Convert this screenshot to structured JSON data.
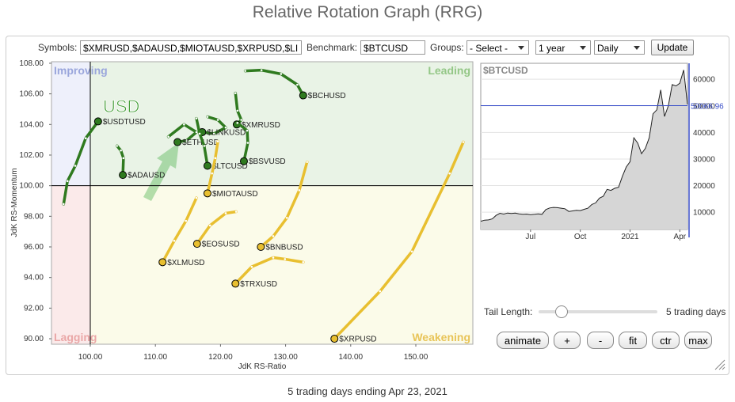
{
  "header": {
    "title": "Relative Rotation Graph (RRG)"
  },
  "controls": {
    "symbols_label": "Symbols:",
    "symbols_value": "$XMRUSD,$ADAUSD,$MIOTAUSD,$XRPUSD,$LI",
    "benchmark_label": "Benchmark:",
    "benchmark_value": "$BTCUSD",
    "groups_label": "Groups:",
    "groups_value": "- Select -",
    "period": "1 year",
    "frequency": "Daily",
    "update": "Update",
    "tail_label": "Tail Length:",
    "tail_value": "5 trading days",
    "buttons": [
      "animate",
      "+",
      "-",
      "fit",
      "ctr",
      "max"
    ]
  },
  "chart_data": [
    {
      "type": "scatter",
      "x_label": "JdK RS-Ratio",
      "y_label": "JdK RS-Momentum",
      "annotation": "USD",
      "quadrant_labels": {
        "improving": "Improving",
        "leading": "Leading",
        "lagging": "Lagging",
        "weakening": "Weakening"
      },
      "crosshair": {
        "x": 100,
        "y": 100
      },
      "xlim": [
        94.04,
        158.76
      ],
      "xticks": [
        {
          "value": 100,
          "label": "100.00"
        },
        {
          "value": 110,
          "label": "110.00"
        },
        {
          "value": 120,
          "label": "120.00"
        },
        {
          "value": 130,
          "label": "130.00"
        },
        {
          "value": 140,
          "label": "140.00"
        },
        {
          "value": 150,
          "label": "150.00"
        }
      ],
      "ylim": [
        89.64,
        108.1
      ],
      "yticks": [
        {
          "value": 90,
          "label": "90.00"
        },
        {
          "value": 92,
          "label": "92.00"
        },
        {
          "value": 94,
          "label": "94.00"
        },
        {
          "value": 96,
          "label": "96.00"
        },
        {
          "value": 98,
          "label": "98.00"
        },
        {
          "value": 100,
          "label": "100.00"
        },
        {
          "value": 102,
          "label": "102.00"
        },
        {
          "value": 104,
          "label": "104.00"
        },
        {
          "value": 106,
          "label": "106.00"
        },
        {
          "value": 108,
          "label": "108.00"
        }
      ],
      "series": [
        {
          "name": "$BCHUSD",
          "color": "#2f7a1f",
          "x": [
            123.8,
            126.3,
            129.3,
            131.8,
            132.7
          ],
          "y": [
            107.5,
            107.55,
            107.3,
            106.6,
            105.9
          ]
        },
        {
          "name": "$USDTUSD",
          "color": "#2f7a1f",
          "x": [
            95.9,
            96.5,
            97.7,
            99.3,
            101.2
          ],
          "y": [
            98.8,
            100.3,
            101.3,
            103.1,
            104.2
          ]
        },
        {
          "name": "$ADAUSD",
          "color": "#2f7a1f",
          "x": [
            104.1,
            104.7,
            105.1,
            105.0
          ],
          "y": [
            102.6,
            102.3,
            101.8,
            100.7
          ]
        },
        {
          "name": "$ETHUSD",
          "color": "#2f7a1f",
          "x": [
            112.0,
            114.4,
            116.3,
            114.8,
            113.4
          ],
          "y": [
            103.2,
            104.0,
            103.5,
            102.95,
            102.85
          ]
        },
        {
          "name": "$LINKUSD",
          "color": "#2f7a1f",
          "x": [
            118.0,
            119.6,
            120.8,
            119.0,
            117.2
          ],
          "y": [
            104.5,
            104.3,
            103.8,
            103.4,
            103.5
          ]
        },
        {
          "name": "$LTCUSD",
          "color": "#2f7a1f",
          "x": [
            116.3,
            116.8,
            117.5,
            118.0
          ],
          "y": [
            104.4,
            103.4,
            102.6,
            101.3
          ]
        },
        {
          "name": "$XMRUSD",
          "color": "#2f7a1f",
          "x": [
            122.3,
            122.6,
            123.2,
            122.5
          ],
          "y": [
            106.05,
            104.9,
            104.3,
            104.0
          ]
        },
        {
          "name": "$BSVUSD",
          "color": "#2f7a1f",
          "x": [
            122.6,
            124.1,
            124.2,
            123.6
          ],
          "y": [
            104.1,
            103.6,
            102.8,
            101.6
          ]
        },
        {
          "name": "$MIOTAUSD",
          "color": "#e8bf30",
          "x": [
            119.6,
            119.2,
            118.7,
            118.0
          ],
          "y": [
            102.9,
            101.8,
            100.8,
            99.5
          ]
        },
        {
          "name": "$EOSUSD",
          "color": "#e8bf30",
          "x": [
            122.4,
            120.8,
            118.4,
            116.4
          ],
          "y": [
            98.3,
            98.2,
            97.4,
            96.2
          ]
        },
        {
          "name": "$XLMUSD",
          "color": "#e8bf30",
          "x": [
            116.3,
            114.7,
            112.9,
            111.1
          ],
          "y": [
            99.2,
            97.7,
            96.4,
            95.0
          ]
        },
        {
          "name": "$BNBUSD",
          "color": "#e8bf30",
          "x": [
            133.3,
            132.1,
            130.2,
            128.1,
            126.2
          ],
          "y": [
            101.55,
            99.7,
            97.9,
            96.7,
            96.0
          ]
        },
        {
          "name": "$TRXUSD",
          "color": "#e8bf30",
          "x": [
            132.7,
            129.9,
            128.1,
            124.8,
            122.3
          ],
          "y": [
            95.0,
            95.2,
            95.3,
            94.7,
            93.6
          ]
        },
        {
          "name": "$XRPUSD",
          "color": "#e8bf30",
          "x": [
            157.3,
            155.2,
            149.4,
            144.5,
            137.5
          ],
          "y": [
            102.85,
            100.8,
            95.7,
            93.1,
            90.0
          ]
        }
      ]
    },
    {
      "type": "area",
      "title": "$BTCUSD",
      "color": "#222222",
      "categories": [
        null,
        null,
        null,
        null,
        null,
        null,
        null,
        null,
        null,
        null,
        null,
        null,
        null,
        "Jul",
        null,
        null,
        null,
        null,
        null,
        null,
        null,
        null,
        null,
        null,
        null,
        null,
        "Oct",
        null,
        null,
        null,
        null,
        null,
        null,
        null,
        null,
        null,
        null,
        null,
        null,
        "2021",
        null,
        null,
        null,
        null,
        null,
        null,
        null,
        null,
        null,
        null,
        null,
        null,
        "Apr",
        null,
        null
      ],
      "values": [
        6600,
        7000,
        7100,
        7500,
        8800,
        9600,
        9300,
        9700,
        9500,
        9700,
        9400,
        9200,
        9300,
        9100,
        9200,
        9400,
        9200,
        11000,
        11600,
        11800,
        11700,
        11500,
        11300,
        10300,
        10500,
        10700,
        10600,
        11100,
        11500,
        12900,
        13500,
        15300,
        16000,
        18600,
        18200,
        19000,
        19400,
        23500,
        27000,
        29000,
        38000,
        36000,
        32000,
        34000,
        38000,
        47000,
        48500,
        56000,
        46000,
        50000,
        58000,
        57500,
        58500,
        63500,
        50500
      ],
      "ylim": [
        3500,
        66000
      ],
      "yticks": [
        10000,
        20000,
        30000,
        40000,
        50000,
        60000
      ],
      "current": {
        "value": 50066.96,
        "label": "50066.96"
      }
    }
  ],
  "footer": "5 trading days ending Apr 23, 2021"
}
